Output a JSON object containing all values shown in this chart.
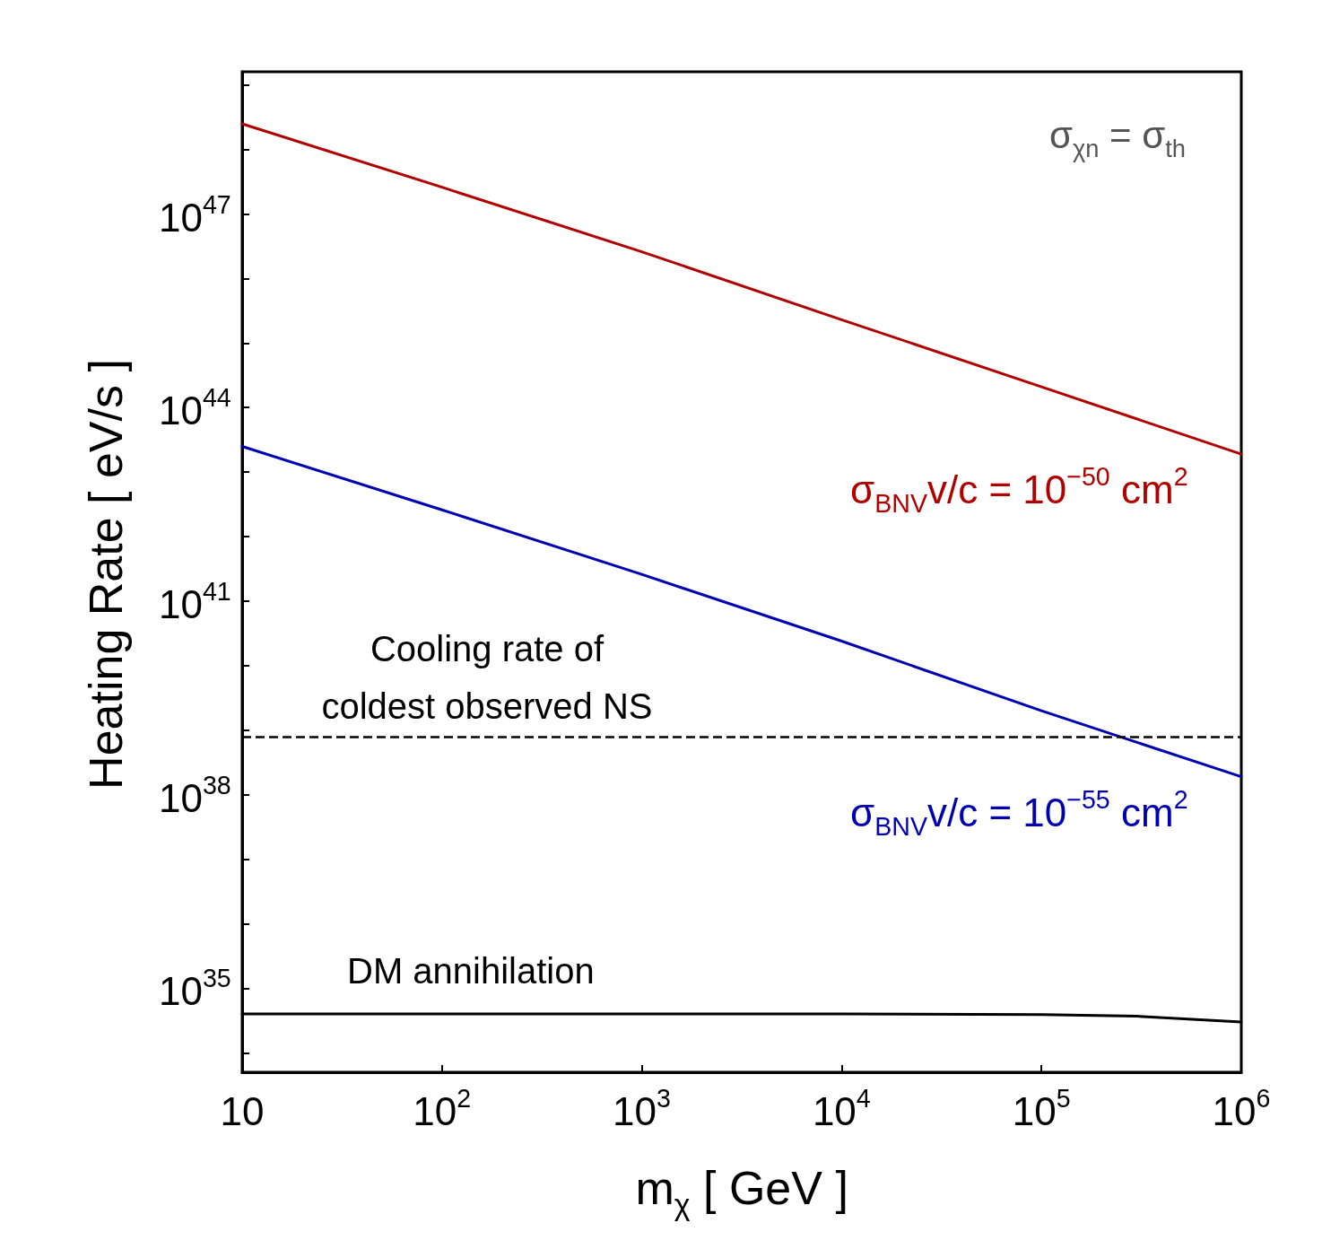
{
  "chart_data": {
    "type": "line",
    "xlabel": "m$_{χ}$ [ GeV ]",
    "ylabel": "Heating Rate [ eV/s ]",
    "log": "xy",
    "grid": false,
    "marker": "none",
    "line_style": "solid",
    "x": [
      10,
      100,
      1000,
      10000,
      100000,
      1000000
    ],
    "series": [
      {
        "name": "σ$_{BNV}$v/c = 10$^{−50}$ cm$^{2}$",
        "color": "#b00000",
        "values": [
          2.5e+48,
          2.6e+47,
          2.6e+46,
          2.3e+45,
          2.1e+44,
          1.9e+43
        ]
      },
      {
        "name": "σ$_{BNV}$v/c = 10$^{−55}$ cm$^{2}$",
        "color": "#0000b0",
        "values": [
          2.5e+43,
          2.6e+42,
          2.6e+41,
          2.4e+40,
          2e+39,
          1.9e+38
        ]
      },
      {
        "name": "DM annihilation",
        "color": "#000000",
        "x": [
          10,
          100,
          1000,
          10000,
          100000,
          300000,
          1000000
        ],
        "values": [
          4e+34,
          4e+34,
          4e+34,
          4e+34,
          3.9e+34,
          3.7e+34,
          3e+34
        ]
      }
    ],
    "ref_lines": [
      {
        "axis": "y",
        "value": 8e+38,
        "label": "Cooling rate of\ncoldest observed NS",
        "color": "#000000",
        "line_style": "dashed"
      }
    ],
    "annotations": [
      "σ$_{χn}$ = σ$_{th}$"
    ],
    "xlim": [
      10,
      1000000
    ],
    "ylim": [
      5e+33,
      1.6e+49
    ],
    "xticks": [
      {
        "value": 10,
        "label": "10"
      },
      {
        "value": 100,
        "label": "10$^{2}$"
      },
      {
        "value": 1000,
        "label": "10$^{3}$"
      },
      {
        "value": 10000,
        "label": "10$^{4}$"
      },
      {
        "value": 100000,
        "label": "10$^{5}$"
      },
      {
        "value": 1000000,
        "label": "10$^{6}$"
      }
    ],
    "yticks": [
      {
        "value": 1e+34,
        "label": null
      },
      {
        "value": 1e+35,
        "label": "10$^{35}$"
      },
      {
        "value": 1e+36,
        "label": null
      },
      {
        "value": 1e+37,
        "label": null
      },
      {
        "value": 1e+38,
        "label": "10$^{38}$"
      },
      {
        "value": 1e+39,
        "label": null
      },
      {
        "value": 1e+40,
        "label": null
      },
      {
        "value": 1e+41,
        "label": "10$^{41}$"
      },
      {
        "value": 1e+42,
        "label": null
      },
      {
        "value": 1e+43,
        "label": null
      },
      {
        "value": 1e+44,
        "label": "10$^{44}$"
      },
      {
        "value": 1e+45,
        "label": null
      },
      {
        "value": 1e+46,
        "label": null
      },
      {
        "value": 1e+47,
        "label": "10$^{47}$"
      },
      {
        "value": 1e+48,
        "label": null
      },
      {
        "value": 1e+49,
        "label": null
      }
    ]
  }
}
